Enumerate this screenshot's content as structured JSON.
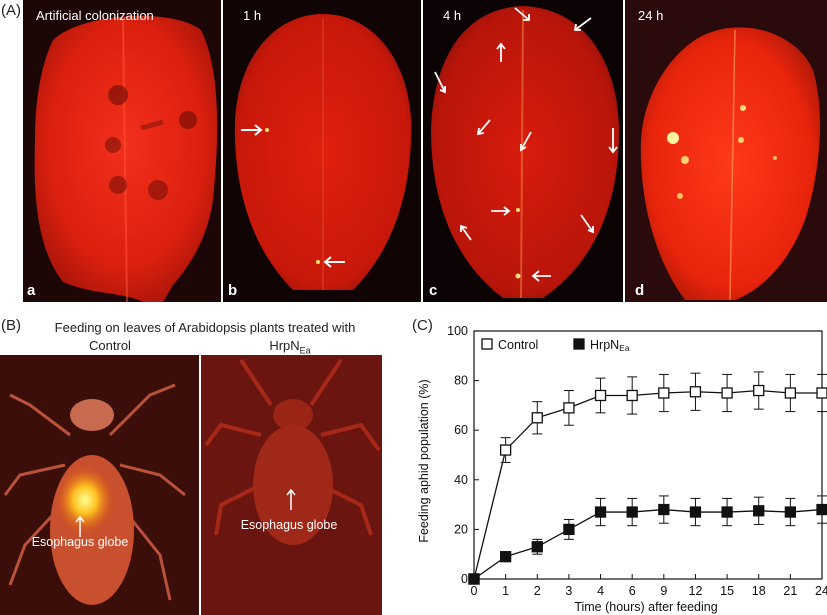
{
  "panel_A": {
    "label": "(A)",
    "subpanels": [
      {
        "title": "Artificial colonization",
        "letter": "a"
      },
      {
        "title": "1 h",
        "letter": "b"
      },
      {
        "title": "4 h",
        "letter": "c"
      },
      {
        "title": "24 h",
        "letter": "d"
      }
    ]
  },
  "panel_B": {
    "label": "(B)",
    "header": "Feeding on leaves of Arabidopsis plants treated with",
    "control_label": "Control",
    "treated_label": "HrpN",
    "treated_sub": "Ea",
    "left_annotation": "Esophagus globe",
    "right_annotation": "Esophagus globe"
  },
  "panel_C": {
    "label": "(C)"
  },
  "chart_data": {
    "type": "line",
    "x": [
      "0",
      "1",
      "2",
      "3",
      "4",
      "6",
      "9",
      "12",
      "15",
      "18",
      "21",
      "24"
    ],
    "xlabel": "Time (hours) after feeding",
    "ylabel": "Feeding aphid population (%)",
    "ylim": [
      0,
      100
    ],
    "yticks": [
      0,
      20,
      40,
      60,
      80,
      100
    ],
    "legend_position": "top-left",
    "grid": false,
    "series": [
      {
        "name": "Control",
        "sub": "",
        "marker": "open-square",
        "values": [
          0,
          52,
          65,
          69,
          74,
          74,
          75,
          75.5,
          75,
          76,
          75,
          75
        ],
        "errors": [
          0,
          5,
          6.5,
          7,
          7,
          7.5,
          7.5,
          7.5,
          7.5,
          7.5,
          7.5,
          7.5
        ]
      },
      {
        "name": "HrpN",
        "sub": "Ea",
        "marker": "filled-square",
        "values": [
          0,
          9,
          13,
          20,
          27,
          27,
          28,
          27,
          27,
          27.5,
          27,
          28
        ],
        "errors": [
          0,
          1.5,
          3,
          4,
          5.5,
          5.5,
          5.5,
          5.5,
          5.5,
          5.5,
          5.5,
          5.5
        ]
      }
    ]
  }
}
